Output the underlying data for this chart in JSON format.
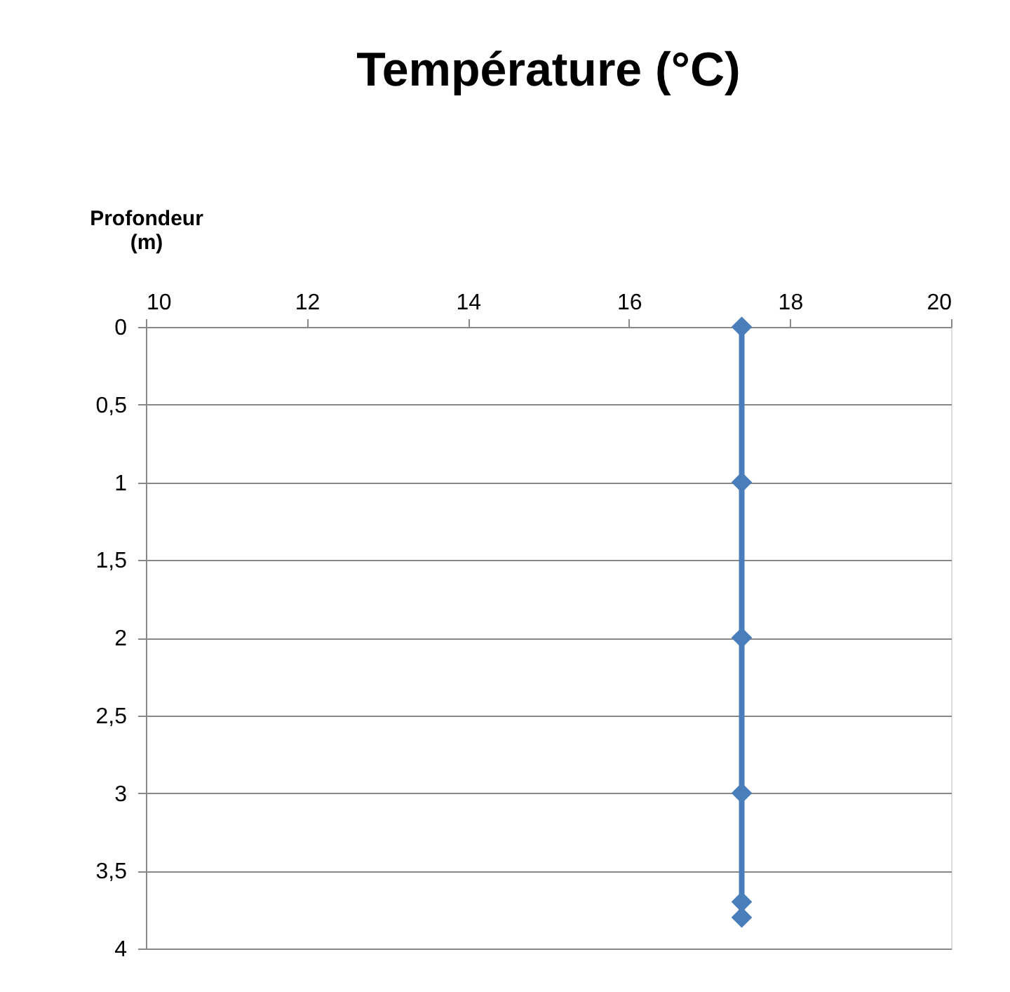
{
  "chart_data": {
    "type": "line",
    "title": "Température (°C)",
    "ylabel": "Profondeur (m)",
    "orientation": "horizontal",
    "x": [
      0,
      1,
      2,
      3,
      3.7,
      3.8
    ],
    "series": [
      {
        "color": "#4a7ebb",
        "values": [
          17.4,
          17.4,
          17.4,
          17.4,
          17.4,
          17.4
        ]
      }
    ],
    "xlim": [
      10,
      20
    ],
    "xticks": [
      10,
      12,
      14,
      16,
      18,
      20
    ],
    "ylim": [
      4,
      0
    ],
    "yticks": [
      0,
      {
        "value": 0.5,
        "label": "0,5"
      },
      1,
      {
        "value": 1.5,
        "label": "1,5"
      },
      2,
      {
        "value": 2.5,
        "label": "2,5"
      },
      3,
      {
        "value": 3.5,
        "label": "3,5"
      },
      4
    ],
    "grid": "y",
    "marker": "diamond",
    "line_style": "solid"
  }
}
